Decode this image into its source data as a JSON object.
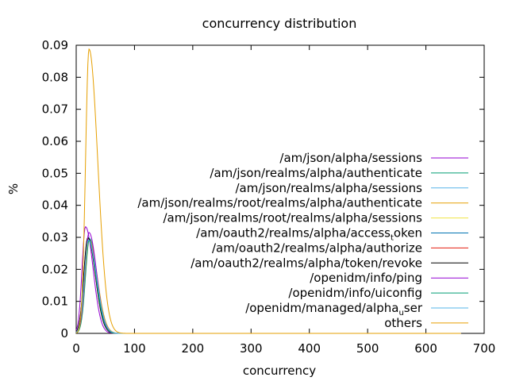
{
  "chart_data": {
    "type": "line",
    "title": "concurrency distribution",
    "xlabel": "concurrency",
    "ylabel": "%",
    "xlim": [
      0,
      700
    ],
    "ylim": [
      0,
      0.09
    ],
    "x_ticks": [
      "0",
      "100",
      "200",
      "300",
      "400",
      "500",
      "600",
      "700"
    ],
    "y_ticks": [
      "0",
      "0.01",
      "0.02",
      "0.03",
      "0.04",
      "0.05",
      "0.06",
      "0.07",
      "0.08",
      "0.09"
    ],
    "grid": false,
    "legend_position": "right",
    "series": [
      {
        "name": "/am/json/alpha/sessions",
        "color": "#9400d3",
        "peak_x": 16,
        "peak_y": 0.0333,
        "width_left": 6,
        "width_right": 13
      },
      {
        "name": "/am/json/realms/alpha/authenticate",
        "color": "#009e73",
        "peak_x": 23,
        "peak_y": 0.0296,
        "width_left": 7,
        "width_right": 12
      },
      {
        "name": "/am/json/realms/alpha/sessions",
        "color": "#56b4e9",
        "peak_x": 21,
        "peak_y": 0.03,
        "width_left": 7,
        "width_right": 14
      },
      {
        "name": "/am/json/realms/root/realms/alpha/authenticate",
        "color": "#e69f00",
        "peak_x": 22,
        "peak_y": 0.0295,
        "width_left": 7,
        "width_right": 14
      },
      {
        "name": "/am/json/realms/root/realms/alpha/sessions",
        "color": "#f0e442",
        "peak_x": 20,
        "peak_y": 0.03,
        "width_left": 7,
        "width_right": 13
      },
      {
        "name_parts": [
          "/am/oauth2/realms/alpha/access",
          "t",
          "oken"
        ],
        "color": "#0072b2",
        "peak_x": 21,
        "peak_y": 0.0298,
        "width_left": 7,
        "width_right": 13
      },
      {
        "name": "/am/oauth2/realms/alpha/authorize",
        "color": "#e51e10",
        "peak_x": 20,
        "peak_y": 0.0297,
        "width_left": 7,
        "width_right": 13
      },
      {
        "name": "/am/oauth2/realms/alpha/token/revoke",
        "color": "#000000",
        "peak_x": 20,
        "peak_y": 0.0299,
        "width_left": 7,
        "width_right": 13
      },
      {
        "name": "/openidm/info/ping",
        "color": "#9400d3",
        "peak_x": 22,
        "peak_y": 0.0315,
        "width_left": 7,
        "width_right": 13
      },
      {
        "name": "/openidm/info/uiconfig",
        "color": "#009e73",
        "peak_x": 21,
        "peak_y": 0.029,
        "width_left": 7,
        "width_right": 13
      },
      {
        "name_parts": [
          "/openidm/managed/alpha",
          "u",
          "ser"
        ],
        "color": "#56b4e9",
        "peak_x": 21,
        "peak_y": 0.0292,
        "width_left": 7,
        "width_right": 14
      },
      {
        "name": "others",
        "color": "#e69f00",
        "peak_x": 22,
        "peak_y": 0.0888,
        "width_left": 6,
        "width_right": 15
      }
    ]
  }
}
